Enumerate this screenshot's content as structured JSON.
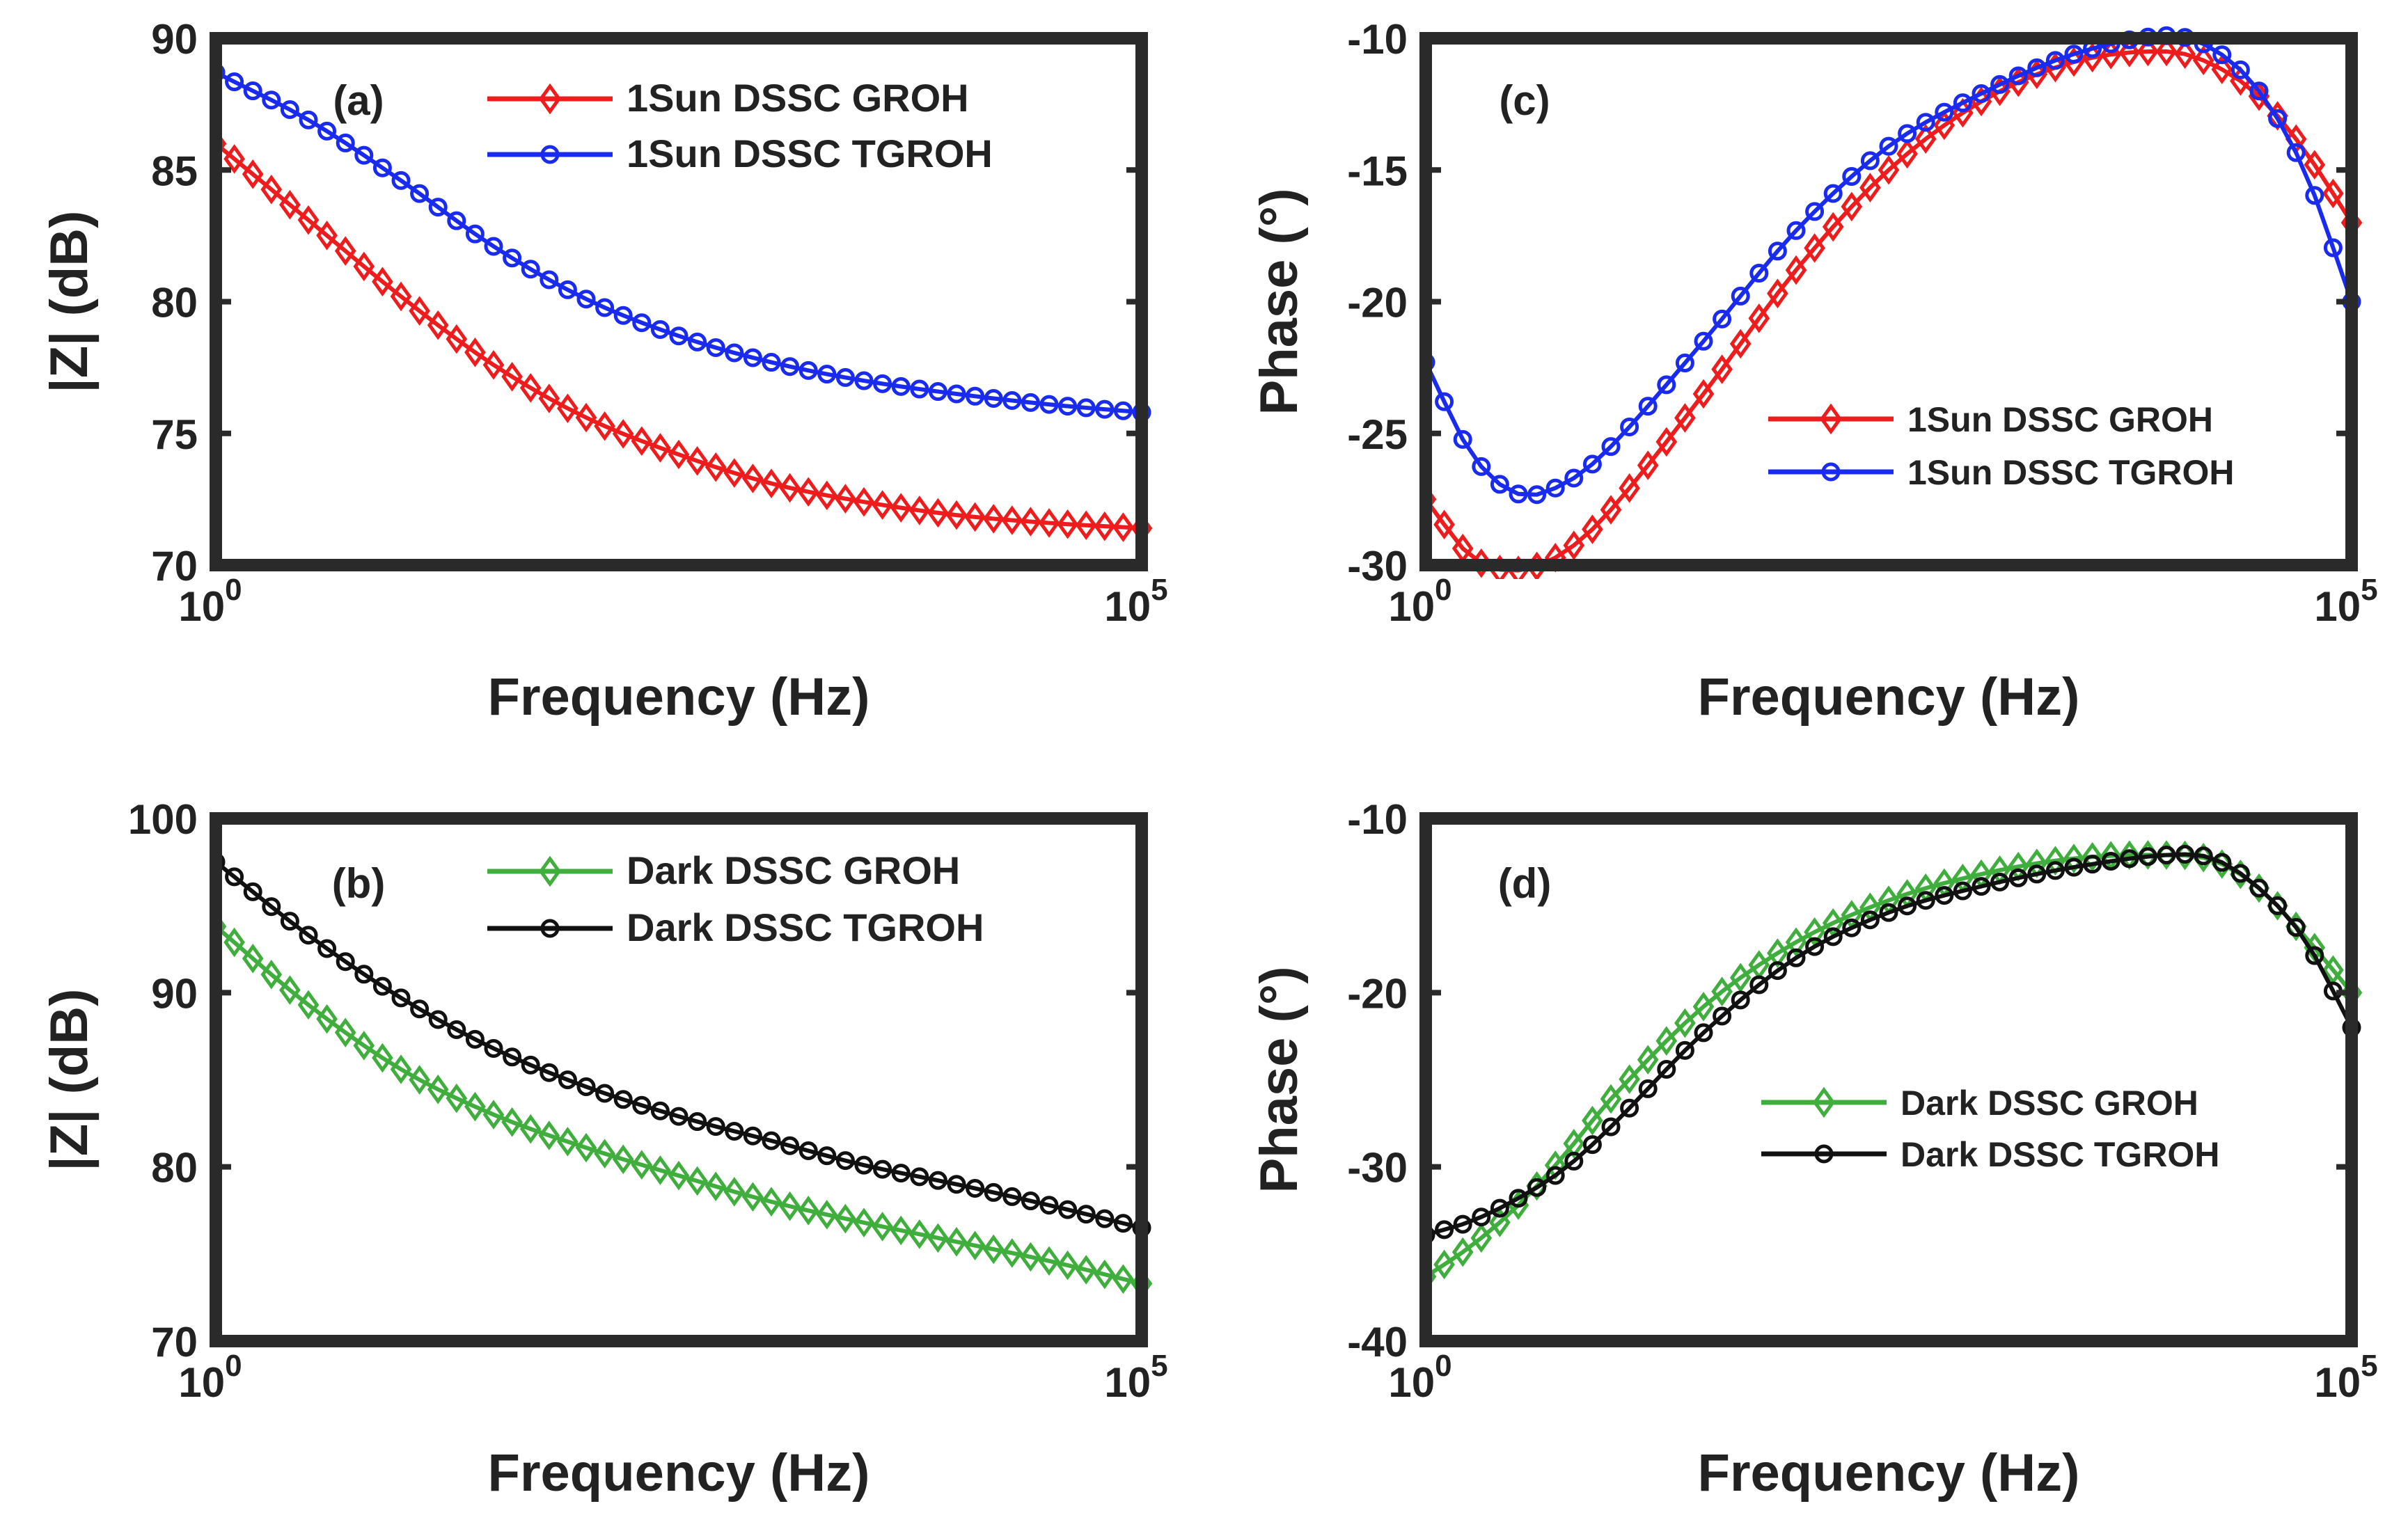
{
  "colors": {
    "red": "#ee1c1c",
    "blue": "#1a2bf0",
    "green": "#3fae3c",
    "black": "#111111",
    "axis": "#2a2a2a"
  },
  "chart_data": [
    {
      "id": "a",
      "type": "line",
      "panel_label": "(a)",
      "xscale": "log",
      "xlabel": "Frequency (Hz)",
      "ylabel": "|Z| (dB)",
      "xlim": [
        1,
        100000
      ],
      "ylim": [
        70,
        90
      ],
      "yticks": [
        70,
        75,
        80,
        85,
        90
      ],
      "xtick_labels": [
        {
          "base": "10",
          "exp": "0"
        },
        {
          "base": "10",
          "exp": "5"
        }
      ],
      "legend_position": "top-right",
      "series": [
        {
          "name": "1Sun DSSC GROH",
          "color": "red",
          "marker": "diamond",
          "x_log10": [
            0,
            0.5,
            1,
            1.5,
            2,
            2.5,
            3,
            3.5,
            4,
            4.5,
            5
          ],
          "y": [
            86,
            83.1,
            80.2,
            77.6,
            75.6,
            74.2,
            73.1,
            72.4,
            71.9,
            71.6,
            71.4
          ]
        },
        {
          "name": "1Sun DSSC TGROH",
          "color": "blue",
          "marker": "circle",
          "x_log10": [
            0,
            0.5,
            1,
            1.5,
            2,
            2.5,
            3,
            3.5,
            4,
            4.5,
            5
          ],
          "y": [
            88.7,
            86.9,
            84.6,
            82.1,
            80.1,
            78.7,
            77.7,
            77,
            76.5,
            76.1,
            75.8
          ]
        }
      ]
    },
    {
      "id": "c",
      "type": "line",
      "panel_label": "(c)",
      "xscale": "log",
      "xlabel": "Frequency (Hz)",
      "ylabel": "Phase (°)",
      "xlim": [
        1,
        100000
      ],
      "ylim": [
        -30,
        -10
      ],
      "yticks": [
        -30,
        -25,
        -20,
        -15,
        -10
      ],
      "xtick_labels": [
        {
          "base": "10",
          "exp": "0"
        },
        {
          "base": "10",
          "exp": "5"
        }
      ],
      "legend_position": "center-right",
      "series": [
        {
          "name": "1Sun DSSC GROH",
          "color": "red",
          "marker": "diamond",
          "x_log10": [
            0,
            0.25,
            0.5,
            0.75,
            1,
            1.5,
            2,
            2.5,
            3,
            3.5,
            4,
            4.25,
            4.5,
            4.75,
            5
          ],
          "y": [
            -27.5,
            -29.7,
            -30.2,
            -29.5,
            -27.9,
            -23.5,
            -18.8,
            -15,
            -12.4,
            -10.9,
            -10.5,
            -11,
            -12.2,
            -14.3,
            -17
          ]
        },
        {
          "name": "1Sun DSSC TGROH",
          "color": "blue",
          "marker": "circle",
          "x_log10": [
            0,
            0.25,
            0.5,
            0.75,
            1,
            1.5,
            2,
            2.5,
            3,
            3.5,
            4,
            4.25,
            4.5,
            4.75,
            5
          ],
          "y": [
            -22.3,
            -25.8,
            -27.3,
            -26.9,
            -25.5,
            -21.5,
            -17.3,
            -14.1,
            -12.1,
            -10.6,
            -9.9,
            -10.4,
            -12,
            -15.1,
            -20
          ]
        }
      ]
    },
    {
      "id": "b",
      "type": "line",
      "panel_label": "(b)",
      "xscale": "log",
      "xlabel": "Frequency (Hz)",
      "ylabel": "|Z| (dB)",
      "xlim": [
        1,
        100000
      ],
      "ylim": [
        70,
        100
      ],
      "yticks": [
        70,
        80,
        90,
        100
      ],
      "xtick_labels": [
        {
          "base": "10",
          "exp": "0"
        },
        {
          "base": "10",
          "exp": "5"
        }
      ],
      "legend_position": "top-right",
      "series": [
        {
          "name": "Dark DSSC GROH",
          "color": "green",
          "marker": "diamond",
          "x_log10": [
            0,
            0.5,
            1,
            1.5,
            2,
            2.5,
            3,
            3.5,
            4,
            4.5,
            5
          ],
          "y": [
            93.8,
            89.3,
            85.6,
            83,
            81.1,
            79.5,
            78,
            76.8,
            75.7,
            74.6,
            73.3
          ]
        },
        {
          "name": "Dark DSSC TGROH",
          "color": "black",
          "marker": "circle",
          "x_log10": [
            0,
            0.5,
            1,
            1.5,
            2,
            2.5,
            3,
            3.5,
            4,
            4.5,
            5
          ],
          "y": [
            97.5,
            93.3,
            89.7,
            86.8,
            84.6,
            82.9,
            81.5,
            80.1,
            79,
            77.8,
            76.5
          ]
        }
      ]
    },
    {
      "id": "d",
      "type": "line",
      "panel_label": "(d)",
      "xscale": "log",
      "xlabel": "Frequency (Hz)",
      "ylabel": "Phase (°)",
      "xlim": [
        1,
        100000
      ],
      "ylim": [
        -40,
        -10
      ],
      "yticks": [
        -40,
        -30,
        -20,
        -10
      ],
      "xtick_labels": [
        {
          "base": "10",
          "exp": "0"
        },
        {
          "base": "10",
          "exp": "5"
        }
      ],
      "legend_position": "center-right",
      "series": [
        {
          "name": "Dark DSSC GROH",
          "color": "green",
          "marker": "diamond",
          "x_log10": [
            0,
            0.25,
            0.5,
            0.75,
            1,
            1.5,
            2,
            2.5,
            3,
            3.5,
            4,
            4.25,
            4.5,
            4.75,
            5
          ],
          "y": [
            -36.3,
            -34.5,
            -32.2,
            -29.3,
            -26.1,
            -20.8,
            -17.1,
            -14.7,
            -13.2,
            -12.3,
            -12.1,
            -12.4,
            -14,
            -16.8,
            -20
          ]
        },
        {
          "name": "Dark DSSC TGROH",
          "color": "black",
          "marker": "circle",
          "x_log10": [
            0,
            0.25,
            0.5,
            0.75,
            1,
            1.5,
            2,
            2.5,
            3,
            3.5,
            4,
            4.25,
            4.5,
            4.75,
            5
          ],
          "y": [
            -33.9,
            -33.1,
            -31.8,
            -30.1,
            -27.7,
            -22.3,
            -18,
            -15.4,
            -13.9,
            -12.8,
            -12.1,
            -12.3,
            -14,
            -17,
            -22
          ]
        }
      ]
    }
  ]
}
